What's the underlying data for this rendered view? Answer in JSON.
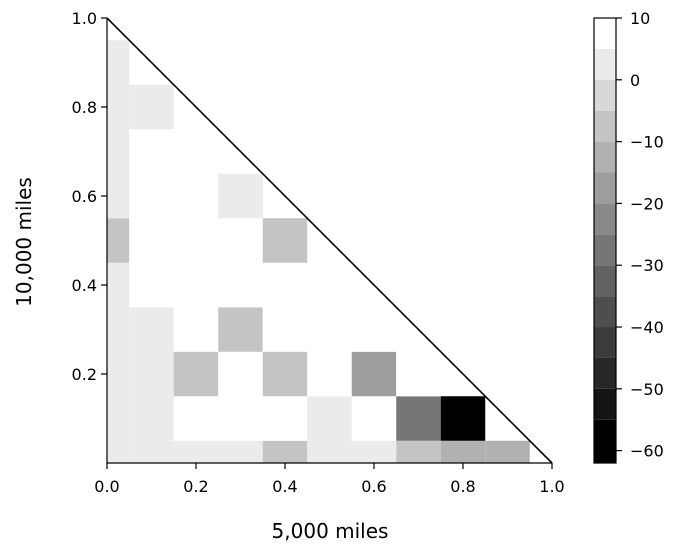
{
  "chart_data": {
    "type": "heatmap",
    "title": "",
    "xlabel": "5,000 miles",
    "ylabel": "10,000 miles",
    "xlim": [
      0,
      1
    ],
    "ylim": [
      0,
      1
    ],
    "x_ticks": [
      "0.0",
      "0.2",
      "0.4",
      "0.6",
      "0.8",
      "1.0"
    ],
    "y_ticks": [
      "0.2",
      "0.4",
      "0.6",
      "0.8",
      "1.0"
    ],
    "cell_size": 0.1,
    "cell_origin": -0.05,
    "triangle_boundary": true,
    "grid": false,
    "colorbar": {
      "position": "right",
      "range": [
        -62,
        10
      ],
      "levels": [
        -62,
        -55,
        -50,
        -45,
        -40,
        -35,
        -30,
        -25,
        -20,
        -15,
        -10,
        -5,
        0,
        5,
        10
      ],
      "ticks": [
        "10",
        "0",
        "−10",
        "−20",
        "−30",
        "−40",
        "−50",
        "−60"
      ],
      "tick_values": [
        10,
        0,
        -10,
        -20,
        -30,
        -40,
        -50,
        -60
      ]
    },
    "cells": [
      {
        "x": 0.0,
        "y": 0.0,
        "value": 2
      },
      {
        "x": 0.1,
        "y": 0.0,
        "value": 2
      },
      {
        "x": 0.2,
        "y": 0.0,
        "value": 2
      },
      {
        "x": 0.3,
        "y": 0.0,
        "value": 2
      },
      {
        "x": 0.4,
        "y": 0.0,
        "value": -8
      },
      {
        "x": 0.5,
        "y": 0.0,
        "value": 2
      },
      {
        "x": 0.6,
        "y": 0.0,
        "value": 2
      },
      {
        "x": 0.7,
        "y": 0.0,
        "value": -8
      },
      {
        "x": 0.8,
        "y": 0.0,
        "value": -12
      },
      {
        "x": 0.9,
        "y": 0.0,
        "value": -12
      },
      {
        "x": 0.0,
        "y": 0.1,
        "value": 2
      },
      {
        "x": 0.1,
        "y": 0.1,
        "value": 2
      },
      {
        "x": 0.2,
        "y": 0.1,
        "value": 7
      },
      {
        "x": 0.3,
        "y": 0.1,
        "value": 7
      },
      {
        "x": 0.4,
        "y": 0.1,
        "value": 7
      },
      {
        "x": 0.5,
        "y": 0.1,
        "value": 2
      },
      {
        "x": 0.6,
        "y": 0.1,
        "value": 7
      },
      {
        "x": 0.7,
        "y": 0.1,
        "value": -28
      },
      {
        "x": 0.8,
        "y": 0.1,
        "value": -60
      },
      {
        "x": 0.0,
        "y": 0.2,
        "value": 2
      },
      {
        "x": 0.1,
        "y": 0.2,
        "value": 2
      },
      {
        "x": 0.2,
        "y": 0.2,
        "value": -8
      },
      {
        "x": 0.3,
        "y": 0.2,
        "value": 7
      },
      {
        "x": 0.4,
        "y": 0.2,
        "value": -8
      },
      {
        "x": 0.5,
        "y": 0.2,
        "value": 7
      },
      {
        "x": 0.6,
        "y": 0.2,
        "value": -18
      },
      {
        "x": 0.7,
        "y": 0.2,
        "value": 7
      },
      {
        "x": 0.0,
        "y": 0.3,
        "value": 2
      },
      {
        "x": 0.1,
        "y": 0.3,
        "value": 2
      },
      {
        "x": 0.2,
        "y": 0.3,
        "value": 7
      },
      {
        "x": 0.3,
        "y": 0.3,
        "value": -8
      },
      {
        "x": 0.4,
        "y": 0.3,
        "value": 7
      },
      {
        "x": 0.5,
        "y": 0.3,
        "value": 7
      },
      {
        "x": 0.6,
        "y": 0.3,
        "value": 7
      },
      {
        "x": 0.0,
        "y": 0.4,
        "value": 2
      },
      {
        "x": 0.1,
        "y": 0.4,
        "value": 7
      },
      {
        "x": 0.2,
        "y": 0.4,
        "value": 7
      },
      {
        "x": 0.3,
        "y": 0.4,
        "value": 7
      },
      {
        "x": 0.4,
        "y": 0.4,
        "value": 7
      },
      {
        "x": 0.5,
        "y": 0.4,
        "value": 7
      },
      {
        "x": 0.0,
        "y": 0.5,
        "value": -8
      },
      {
        "x": 0.1,
        "y": 0.5,
        "value": 7
      },
      {
        "x": 0.2,
        "y": 0.5,
        "value": 7
      },
      {
        "x": 0.3,
        "y": 0.5,
        "value": 7
      },
      {
        "x": 0.4,
        "y": 0.5,
        "value": -8
      },
      {
        "x": 0.0,
        "y": 0.6,
        "value": 2
      },
      {
        "x": 0.1,
        "y": 0.6,
        "value": 7
      },
      {
        "x": 0.2,
        "y": 0.6,
        "value": 7
      },
      {
        "x": 0.3,
        "y": 0.6,
        "value": 2
      },
      {
        "x": 0.0,
        "y": 0.7,
        "value": 2
      },
      {
        "x": 0.1,
        "y": 0.7,
        "value": 7
      },
      {
        "x": 0.2,
        "y": 0.7,
        "value": 7
      },
      {
        "x": 0.0,
        "y": 0.8,
        "value": 2
      },
      {
        "x": 0.1,
        "y": 0.8,
        "value": 2
      },
      {
        "x": 0.0,
        "y": 0.9,
        "value": 2
      }
    ]
  }
}
